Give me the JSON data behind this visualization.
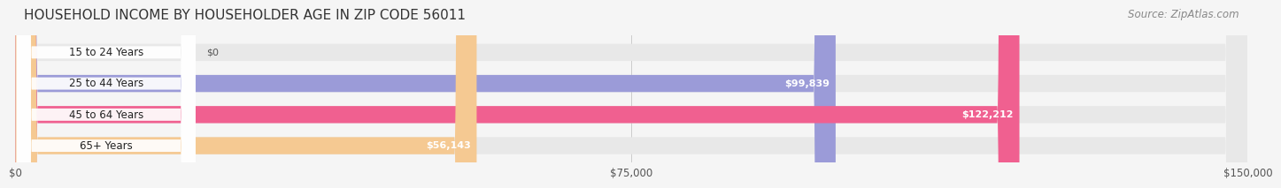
{
  "title": "HOUSEHOLD INCOME BY HOUSEHOLDER AGE IN ZIP CODE 56011",
  "source": "Source: ZipAtlas.com",
  "categories": [
    "15 to 24 Years",
    "25 to 44 Years",
    "45 to 64 Years",
    "65+ Years"
  ],
  "values": [
    0,
    99839,
    122212,
    56143
  ],
  "bar_colors": [
    "#7DD8D8",
    "#9B9BD8",
    "#F06090",
    "#F5C992"
  ],
  "label_colors": [
    "#555555",
    "#ffffff",
    "#ffffff",
    "#555555"
  ],
  "value_labels": [
    "$0",
    "$99,839",
    "$122,212",
    "$56,143"
  ],
  "xlim": [
    0,
    150000
  ],
  "xticks": [
    0,
    75000,
    150000
  ],
  "xtick_labels": [
    "$0",
    "$75,000",
    "$150,000"
  ],
  "background_color": "#f5f5f5",
  "bar_background_color": "#e8e8e8",
  "title_fontsize": 11,
  "source_fontsize": 8.5,
  "bar_height": 0.55,
  "bar_rounding": 0.3
}
